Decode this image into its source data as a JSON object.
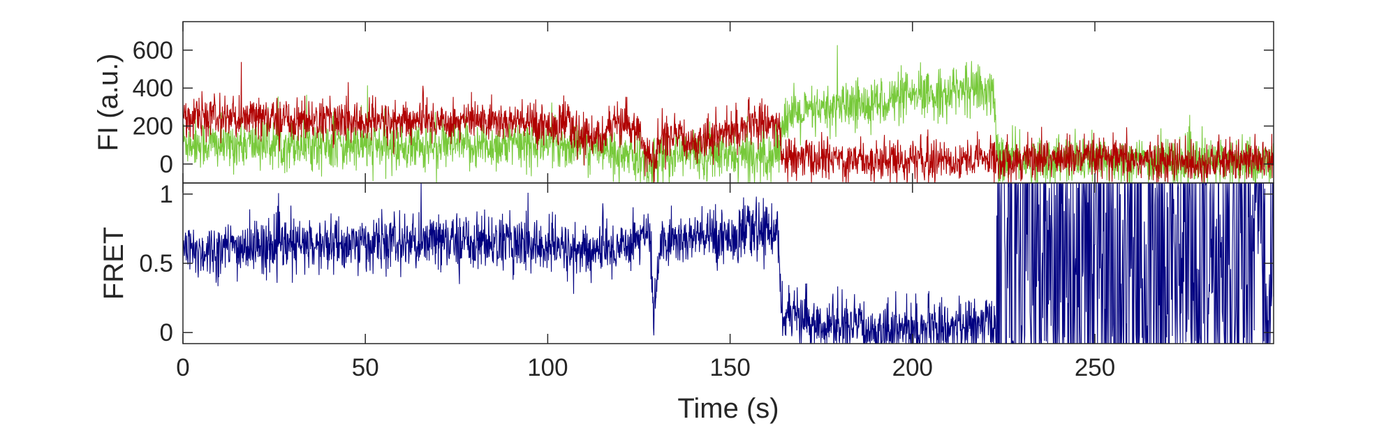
{
  "chart_data": [
    {
      "type": "line",
      "title": "",
      "xlabel": "",
      "ylabel": "FI (a.u.)",
      "xlim": [
        0,
        299
      ],
      "ylim": [
        -100,
        750
      ],
      "xticks": [
        0,
        50,
        100,
        150,
        200,
        250
      ],
      "yticks": [
        0,
        200,
        400,
        600
      ],
      "xticklabels_visible": false,
      "grid": false,
      "legend": "none",
      "series_colors": {
        "donor": "#77c93a",
        "acceptor": "#b00000"
      },
      "series": [
        {
          "color": "#77c93a",
          "noise_sd": 65,
          "x": [
            0,
            10,
            30,
            60,
            90,
            100,
            110,
            118,
            125,
            129,
            131,
            140,
            155,
            163,
            164.5,
            175,
            190,
            205,
            215,
            222,
            223.5,
            240,
            270,
            299
          ],
          "values": [
            120,
            100,
            110,
            90,
            100,
            110,
            90,
            60,
            20,
            -10,
            40,
            50,
            40,
            60,
            240,
            280,
            330,
            360,
            400,
            380,
            20,
            20,
            10,
            10
          ]
        },
        {
          "color": "#b00000",
          "noise_sd": 55,
          "x": [
            0,
            20,
            50,
            80,
            100,
            105,
            108,
            115,
            120,
            125,
            129,
            131,
            140,
            150,
            160,
            163,
            164.5,
            200,
            240,
            280,
            299
          ],
          "values": [
            250,
            240,
            220,
            230,
            210,
            220,
            140,
            160,
            210,
            180,
            -20,
            140,
            120,
            170,
            230,
            200,
            30,
            20,
            30,
            10,
            20
          ]
        }
      ]
    },
    {
      "type": "line",
      "title": "",
      "xlabel": "Time (s)",
      "ylabel": "FRET",
      "xlim": [
        0,
        299
      ],
      "ylim": [
        -0.08,
        1.08
      ],
      "xticks": [
        0,
        50,
        100,
        150,
        200,
        250
      ],
      "yticks": [
        0,
        0.5,
        1
      ],
      "yticklabels": [
        "0",
        "0.5",
        "1"
      ],
      "grid": false,
      "legend": "none",
      "series": [
        {
          "color": "#000080",
          "noise_sd": 0.1,
          "x": [
            0,
            20,
            50,
            80,
            100,
            110,
            118,
            125,
            128,
            129,
            131,
            140,
            155,
            163,
            164.5,
            170,
            180,
            200,
            215,
            222,
            223
          ],
          "values": [
            0.58,
            0.62,
            0.64,
            0.66,
            0.62,
            0.58,
            0.6,
            0.7,
            0.7,
            0.1,
            0.65,
            0.68,
            0.72,
            0.75,
            0.12,
            0.08,
            0.03,
            0.02,
            0.04,
            0.06,
            0.06
          ]
        },
        {
          "color": "#000080",
          "x_range": [
            223,
            299
          ],
          "pattern": "random-uniform",
          "ymin": -0.08,
          "ymax": 1.08
        }
      ]
    }
  ]
}
